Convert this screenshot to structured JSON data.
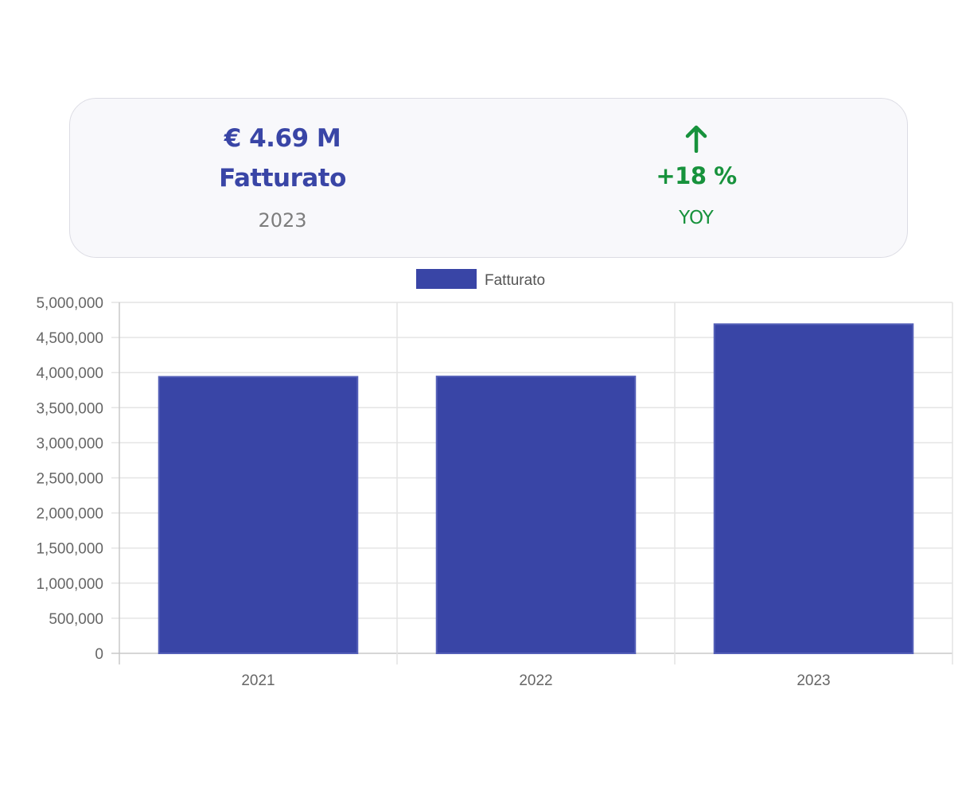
{
  "kpi": {
    "value": "€ 4.69 M",
    "label": "Fatturato",
    "year": "2023",
    "change": "+18 %",
    "period": "YOY",
    "change_icon": "arrow-up-icon"
  },
  "colors": {
    "primary": "#3945a6",
    "positive": "#17923c",
    "muted": "#7d7d7d",
    "grid": "#e4e4e4"
  },
  "chart_data": {
    "type": "bar",
    "categories": [
      "2021",
      "2022",
      "2023"
    ],
    "series": [
      {
        "name": "Fatturato",
        "values": [
          3940000,
          3945000,
          4690000
        ]
      }
    ],
    "y_ticks": [
      0,
      500000,
      1000000,
      1500000,
      2000000,
      2500000,
      3000000,
      3500000,
      4000000,
      4500000,
      5000000
    ],
    "y_tick_labels": [
      "0",
      "500,000",
      "1,000,000",
      "1,500,000",
      "2,000,000",
      "2,500,000",
      "3,000,000",
      "3,500,000",
      "4,000,000",
      "4,500,000",
      "5,000,000"
    ],
    "ylim": [
      0,
      5000000
    ],
    "title": "",
    "xlabel": "",
    "ylabel": "",
    "grid": true,
    "legend": "top-center"
  }
}
